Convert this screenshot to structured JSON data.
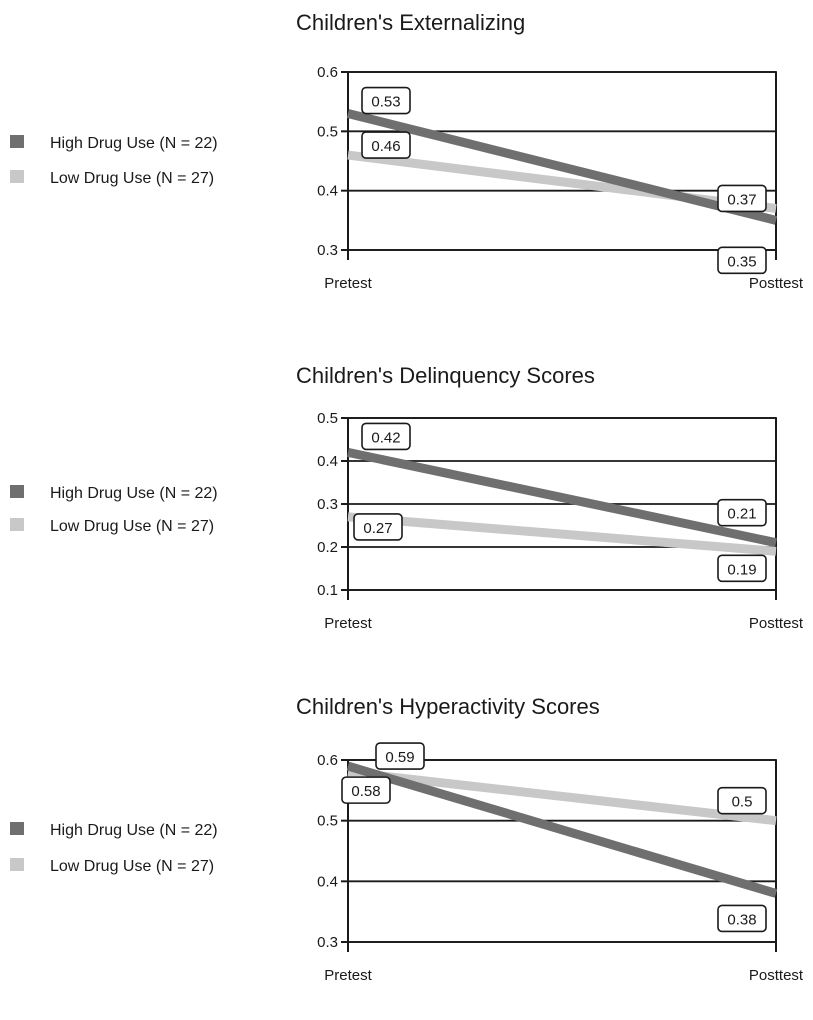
{
  "chart_data": [
    {
      "type": "line",
      "title": "Children's Externalizing",
      "categories": [
        "Pretest",
        "Posttest"
      ],
      "ylim": [
        0.3,
        0.6
      ],
      "yticks": [
        "0.3",
        "0.4",
        "0.5",
        "0.6"
      ],
      "grid": true,
      "legend_position": "left",
      "series": [
        {
          "name": "High Drug Use (N = 22)",
          "color": "#6f6f6f",
          "values": [
            0.53,
            0.35
          ],
          "labels": [
            "0.53",
            "0.35"
          ]
        },
        {
          "name": "Low Drug Use (N = 27)",
          "color": "#c8c8c8",
          "values": [
            0.46,
            0.37
          ],
          "labels": [
            "0.46",
            "0.37"
          ]
        }
      ]
    },
    {
      "type": "line",
      "title": "Children's Delinquency Scores",
      "categories": [
        "Pretest",
        "Posttest"
      ],
      "ylim": [
        0.1,
        0.5
      ],
      "yticks": [
        "0.1",
        "0.2",
        "0.3",
        "0.4",
        "0.5"
      ],
      "grid": true,
      "legend_position": "left",
      "series": [
        {
          "name": "High Drug Use (N = 22)",
          "color": "#6f6f6f",
          "values": [
            0.42,
            0.21
          ],
          "labels": [
            "0.42",
            "0.21"
          ]
        },
        {
          "name": "Low Drug Use (N = 27)",
          "color": "#c8c8c8",
          "values": [
            0.27,
            0.19
          ],
          "labels": [
            "0.27",
            "0.19"
          ]
        }
      ]
    },
    {
      "type": "line",
      "title": "Children's Hyperactivity Scores",
      "categories": [
        "Pretest",
        "Posttest"
      ],
      "ylim": [
        0.3,
        0.6
      ],
      "yticks": [
        "0.3",
        "0.4",
        "0.5",
        "0.6"
      ],
      "grid": true,
      "legend_position": "left",
      "series": [
        {
          "name": "High Drug Use (N = 22)",
          "color": "#6f6f6f",
          "values": [
            0.59,
            0.38
          ],
          "labels": [
            "0.59",
            "0.38"
          ]
        },
        {
          "name": "Low Drug Use (N = 27)",
          "color": "#c8c8c8",
          "values": [
            0.58,
            0.5
          ],
          "labels": [
            "0.58",
            "0.5"
          ]
        }
      ]
    }
  ]
}
